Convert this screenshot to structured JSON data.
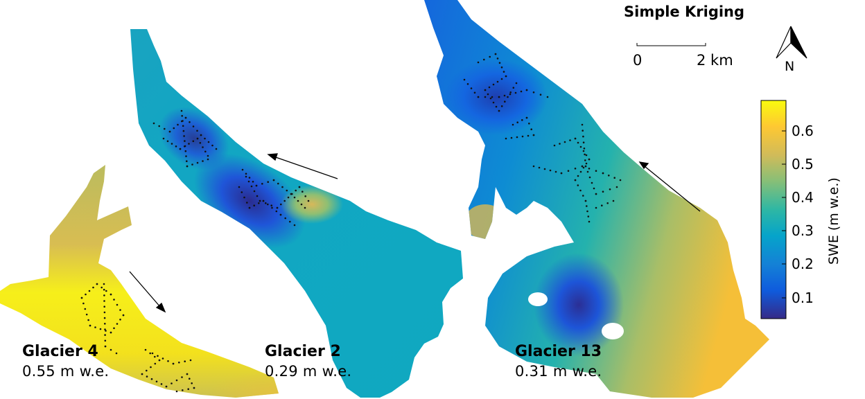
{
  "map_title": "Simple Kriging",
  "scale_bar": {
    "start_label": "0",
    "end_label": "2 km"
  },
  "north_arrow": {
    "label": "N",
    "icon": "north-arrow-icon"
  },
  "colorbar": {
    "label": "SWE (m w.e.)",
    "ticks": [
      "0.6",
      "0.5",
      "0.4",
      "0.3",
      "0.2",
      "0.1"
    ],
    "range": [
      0.03,
      0.69
    ],
    "colormap": "parula",
    "colors": [
      "#352a87",
      "#0f5cdd",
      "#1481d6",
      "#06a4ca",
      "#2eb7a4",
      "#87bf77",
      "#d1bb59",
      "#fec832",
      "#f9fb0e"
    ]
  },
  "glaciers": [
    {
      "name": "Glacier 4",
      "mean_swe": "0.55 m w.e."
    },
    {
      "name": "Glacier 2",
      "mean_swe": "0.29 m w.e."
    },
    {
      "name": "Glacier 13",
      "mean_swe": "0.31 m w.e."
    }
  ]
}
